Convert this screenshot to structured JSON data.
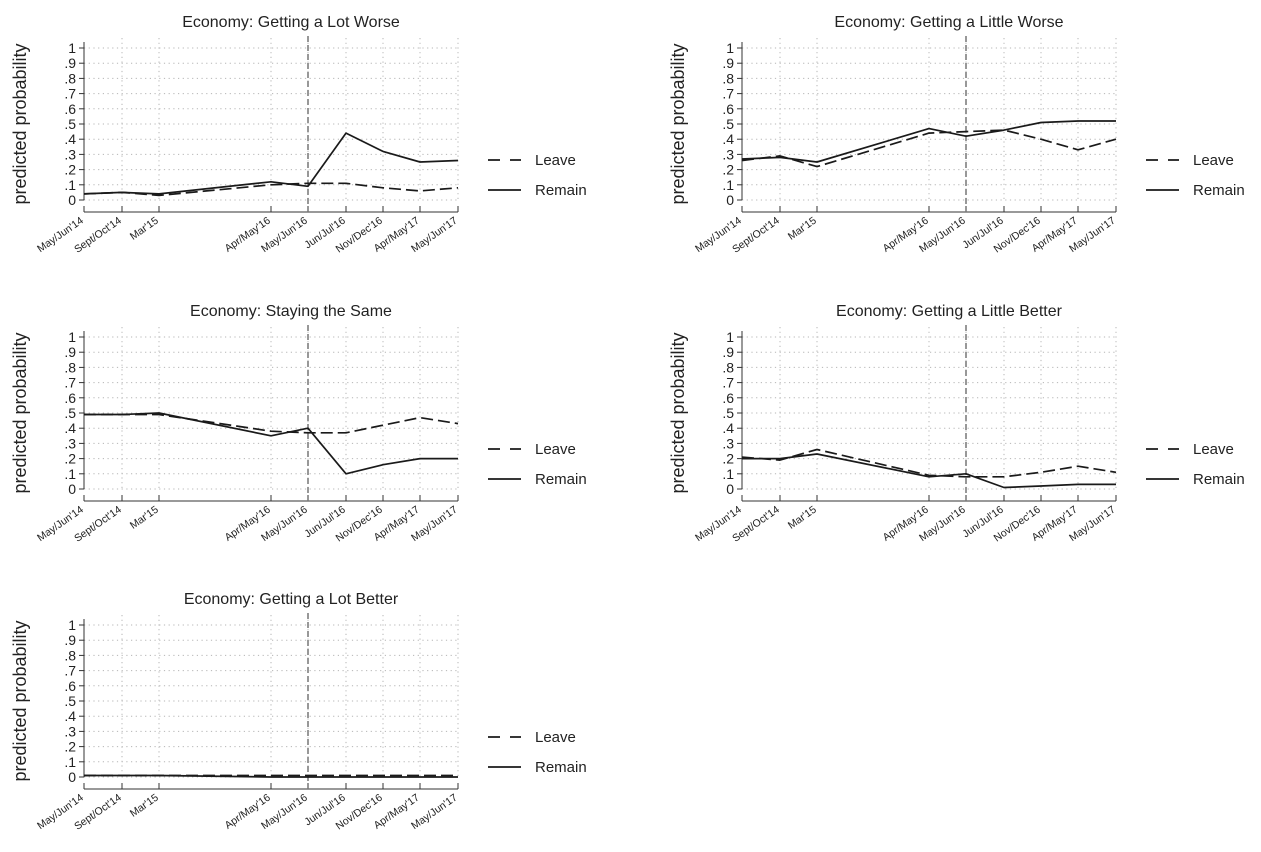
{
  "chart_data": [
    {
      "type": "line",
      "title": "Economy: Getting a Lot Worse",
      "ylabel": "predicted probability",
      "ylim": [
        0,
        1
      ],
      "y_ticks": [
        "0",
        ".1",
        ".2",
        ".3",
        ".4",
        ".5",
        ".6",
        ".7",
        ".8",
        ".9",
        "1"
      ],
      "categories": [
        "May/Jun'14",
        "Sept/Oct'14",
        "Mar'15",
        "Apr/May'16",
        "May/Jun'16",
        "Jun/Jul'16",
        "Nov/Dec'16",
        "Apr/May'17",
        "May/Jun'17"
      ],
      "vline_at": "May/Jun'16",
      "legend": "right",
      "series": [
        {
          "name": "Leave",
          "dash": "dashed",
          "values": [
            0.04,
            0.05,
            0.03,
            0.1,
            0.11,
            0.11,
            0.08,
            0.06,
            0.08
          ]
        },
        {
          "name": "Remain",
          "dash": "solid",
          "values": [
            0.04,
            0.05,
            0.04,
            0.12,
            0.09,
            0.44,
            0.32,
            0.25,
            0.26
          ]
        }
      ]
    },
    {
      "type": "line",
      "title": "Economy: Getting a Little Worse",
      "ylabel": "predicted probability",
      "ylim": [
        0,
        1
      ],
      "y_ticks": [
        "0",
        ".1",
        ".2",
        ".3",
        ".4",
        ".5",
        ".6",
        ".7",
        ".8",
        ".9",
        "1"
      ],
      "categories": [
        "May/Jun'14",
        "Sept/Oct'14",
        "Mar'15",
        "Apr/May'16",
        "May/Jun'16",
        "Jun/Jul'16",
        "Nov/Dec'16",
        "Apr/May'17",
        "May/Jun'17"
      ],
      "vline_at": "May/Jun'16",
      "legend": "right",
      "series": [
        {
          "name": "Leave",
          "dash": "dashed",
          "values": [
            0.26,
            0.29,
            0.22,
            0.44,
            0.45,
            0.46,
            0.4,
            0.33,
            0.4
          ]
        },
        {
          "name": "Remain",
          "dash": "solid",
          "values": [
            0.27,
            0.28,
            0.25,
            0.47,
            0.42,
            0.46,
            0.51,
            0.52,
            0.52
          ]
        }
      ]
    },
    {
      "type": "line",
      "title": "Economy: Staying the Same",
      "ylabel": "predicted probability",
      "ylim": [
        0,
        1
      ],
      "y_ticks": [
        "0",
        ".1",
        ".2",
        ".3",
        ".4",
        ".5",
        ".6",
        ".7",
        ".8",
        ".9",
        "1"
      ],
      "categories": [
        "May/Jun'14",
        "Sept/Oct'14",
        "Mar'15",
        "Apr/May'16",
        "May/Jun'16",
        "Jun/Jul'16",
        "Nov/Dec'16",
        "Apr/May'17",
        "May/Jun'17"
      ],
      "vline_at": "May/Jun'16",
      "legend": "right",
      "series": [
        {
          "name": "Leave",
          "dash": "dashed",
          "values": [
            0.49,
            0.49,
            0.49,
            0.38,
            0.37,
            0.37,
            0.42,
            0.47,
            0.43
          ]
        },
        {
          "name": "Remain",
          "dash": "solid",
          "values": [
            0.49,
            0.49,
            0.5,
            0.35,
            0.4,
            0.1,
            0.16,
            0.2,
            0.2
          ]
        }
      ]
    },
    {
      "type": "line",
      "title": "Economy: Getting a Little Better",
      "ylabel": "predicted probability",
      "ylim": [
        0,
        1
      ],
      "y_ticks": [
        "0",
        ".1",
        ".2",
        ".3",
        ".4",
        ".5",
        ".6",
        ".7",
        ".8",
        ".9",
        "1"
      ],
      "categories": [
        "May/Jun'14",
        "Sept/Oct'14",
        "Mar'15",
        "Apr/May'16",
        "May/Jun'16",
        "Jun/Jul'16",
        "Nov/Dec'16",
        "Apr/May'17",
        "May/Jun'17"
      ],
      "vline_at": "May/Jun'16",
      "legend": "right",
      "series": [
        {
          "name": "Leave",
          "dash": "dashed",
          "values": [
            0.21,
            0.19,
            0.26,
            0.09,
            0.08,
            0.08,
            0.11,
            0.15,
            0.11
          ]
        },
        {
          "name": "Remain",
          "dash": "solid",
          "values": [
            0.2,
            0.2,
            0.23,
            0.08,
            0.1,
            0.01,
            0.02,
            0.03,
            0.03
          ]
        }
      ]
    },
    {
      "type": "line",
      "title": "Economy: Getting a Lot Better",
      "ylabel": "predicted probability",
      "ylim": [
        0,
        1
      ],
      "y_ticks": [
        "0",
        ".1",
        ".2",
        ".3",
        ".4",
        ".5",
        ".6",
        ".7",
        ".8",
        ".9",
        "1"
      ],
      "categories": [
        "May/Jun'14",
        "Sept/Oct'14",
        "Mar'15",
        "Apr/May'16",
        "May/Jun'16",
        "Jun/Jul'16",
        "Nov/Dec'16",
        "Apr/May'17",
        "May/Jun'17"
      ],
      "vline_at": "May/Jun'16",
      "legend": "right",
      "series": [
        {
          "name": "Leave",
          "dash": "dashed",
          "values": [
            0.01,
            0.01,
            0.01,
            0.01,
            0.01,
            0.01,
            0.01,
            0.01,
            0.01
          ]
        },
        {
          "name": "Remain",
          "dash": "solid",
          "values": [
            0.01,
            0.01,
            0.01,
            0.0,
            0.0,
            0.0,
            0.0,
            0.0,
            0.0
          ]
        }
      ]
    }
  ]
}
